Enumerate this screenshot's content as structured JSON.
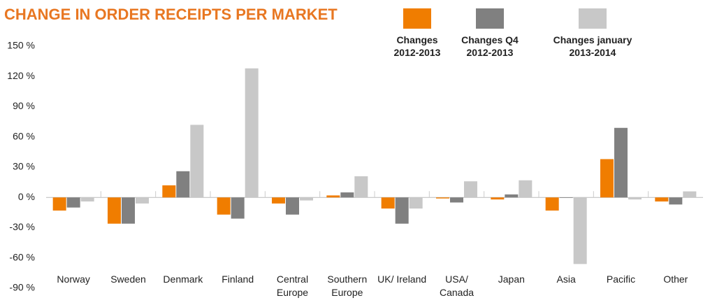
{
  "chart_data": {
    "type": "bar",
    "title": "CHANGE IN ORDER RECEIPTS PER MARKET",
    "categories": [
      "Norway",
      "Sweden",
      "Denmark",
      "Finland",
      "Central Europe",
      "Southern Europe",
      "UK/ Ireland",
      "USA/ Canada",
      "Japan",
      "Asia",
      "Pacific",
      "Other"
    ],
    "series": [
      {
        "name": "Changes 2012-2013",
        "color": "#f07d00",
        "values": [
          -13,
          -26,
          12,
          -17,
          -6,
          2,
          -11,
          -1,
          -2,
          -13,
          38,
          -4
        ]
      },
      {
        "name": "Changes Q4 2012-2013",
        "color": "#808080",
        "values": [
          -10,
          -26,
          26,
          -21,
          -17,
          5,
          -26,
          -5,
          3,
          -0.5,
          69,
          -7
        ]
      },
      {
        "name": "Changes january 2013-2014",
        "color": "#c8c8c8",
        "values": [
          -4,
          -6,
          72,
          128,
          -3,
          21,
          -11,
          16,
          17,
          -66,
          -2,
          6
        ]
      }
    ],
    "ylim": [
      -90,
      150
    ],
    "yticks": [
      {
        "value": -90,
        "label": "-90 %"
      },
      {
        "value": -60,
        "label": "-60 %"
      },
      {
        "value": -30,
        "label": "-30 %"
      },
      {
        "value": 0,
        "label": "0 %"
      },
      {
        "value": 30,
        "label": "30 %"
      },
      {
        "value": 60,
        "label": "60 %"
      },
      {
        "value": 90,
        "label": "90 %"
      },
      {
        "value": 120,
        "label": "120 %"
      },
      {
        "value": 150,
        "label": "150 %"
      }
    ],
    "grid": false
  }
}
